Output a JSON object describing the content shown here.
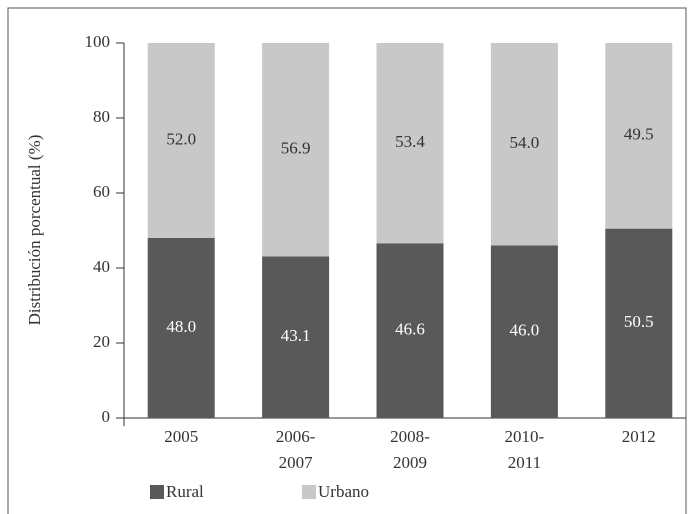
{
  "chart_data": {
    "type": "stacked_bar",
    "categories": [
      "2005",
      "2006-2007",
      "2008-2009",
      "2010-2011",
      "2012"
    ],
    "series": [
      {
        "name": "Rural",
        "color": "#595959",
        "values": [
          48.0,
          43.1,
          46.6,
          46.0,
          50.5
        ],
        "value_labels": [
          "48.0",
          "43.1",
          "46.6",
          "46.0",
          "50.5"
        ]
      },
      {
        "name": "Urbano",
        "color": "#c8c8c8",
        "values": [
          52.0,
          56.9,
          53.4,
          54.0,
          49.5
        ],
        "value_labels": [
          "52.0",
          "56.9",
          "53.4",
          "54.0",
          "49.5"
        ]
      }
    ],
    "ylabel": "Distribución porcentual (%)",
    "ylim": [
      0,
      100
    ],
    "yticks": [
      0,
      20,
      40,
      60,
      80,
      100
    ]
  }
}
